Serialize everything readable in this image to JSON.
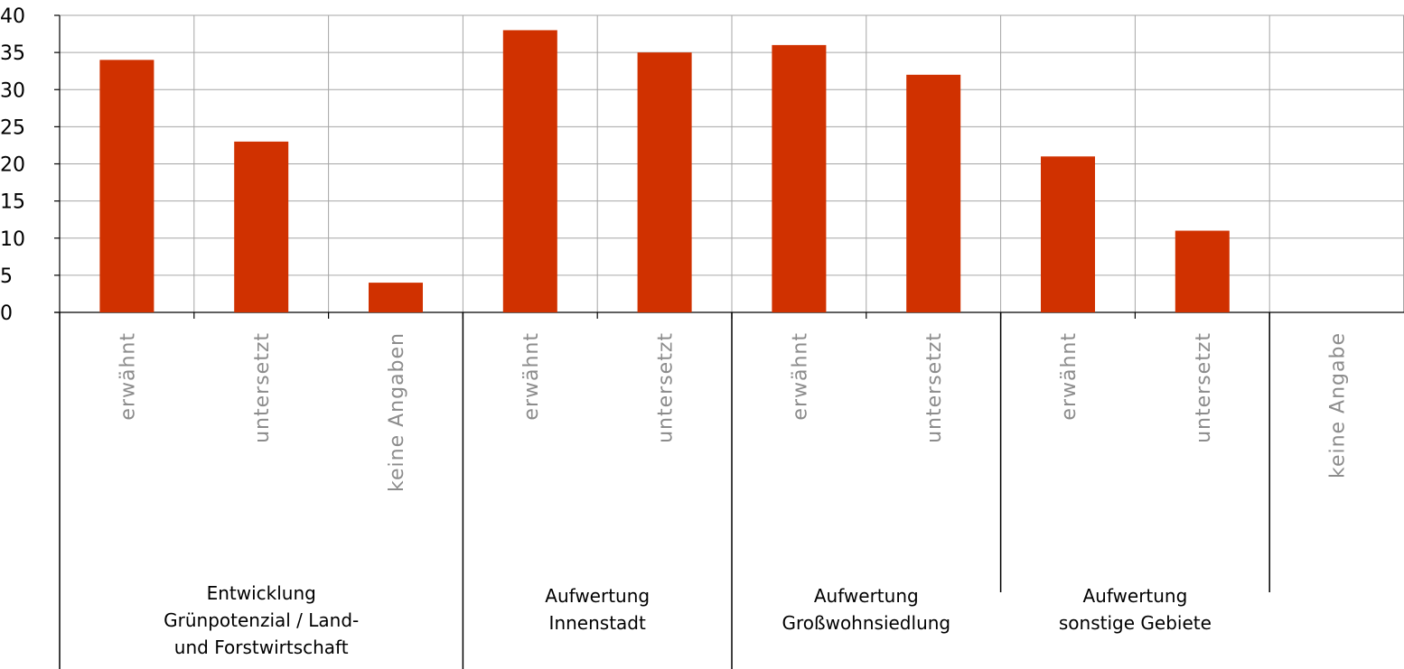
{
  "chart_data": {
    "type": "bar",
    "ylim": [
      0,
      40
    ],
    "yticks": [
      "0",
      "5",
      "10",
      "15",
      "20",
      "25",
      "30",
      "35",
      "40"
    ],
    "grid": true,
    "bar_color": "#d03100",
    "categories": [
      "erwähnt",
      "untersetzt",
      "keine Angaben",
      "erwähnt",
      "untersetzt",
      "erwähnt",
      "untersetzt",
      "erwähnt",
      "untersetzt",
      "keine Angabe"
    ],
    "values": [
      34,
      23,
      4,
      38,
      35,
      36,
      32,
      21,
      11,
      0
    ],
    "groups": [
      {
        "lines": [
          "Entwicklung",
          "Grünpotenzial / Land-",
          "und Forstwirtschaft"
        ],
        "span": [
          0,
          2
        ]
      },
      {
        "lines": [
          "Aufwertung",
          "Innenstadt"
        ],
        "span": [
          3,
          4
        ]
      },
      {
        "lines": [
          "Aufwertung",
          "Großwohnsiedlung"
        ],
        "span": [
          5,
          6
        ]
      },
      {
        "lines": [
          "Aufwertung",
          "sonstige Gebiete"
        ],
        "span": [
          7,
          8
        ]
      },
      {
        "lines": [],
        "span": [
          9,
          9
        ]
      }
    ]
  }
}
